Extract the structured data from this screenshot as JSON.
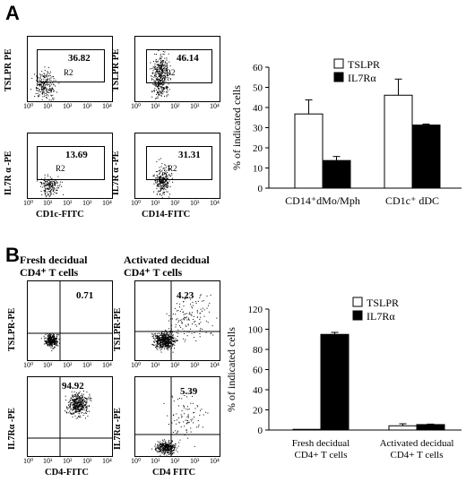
{
  "panel_a": {
    "letter": "A",
    "flow_plots": [
      {
        "ylabel": "TSLPR PE",
        "value": "36.82",
        "region": "R2",
        "xlabel": ""
      },
      {
        "ylabel": "TSLPR PE",
        "value": "46.14",
        "region": "R2",
        "xlabel": ""
      },
      {
        "ylabel": "IL7R α -PE",
        "value": "13.69",
        "region": "R2",
        "xlabel": "CD1c-FITC"
      },
      {
        "ylabel": "IL7R α -PE",
        "value": "31.31",
        "region": "R2",
        "xlabel": "CD14-FITC"
      }
    ]
  },
  "panel_b": {
    "letter": "B",
    "group_titles": [
      {
        "line1": "Fresh decidual",
        "line2": "CD4⁺ T cells"
      },
      {
        "line1": "Activated decidual",
        "line2": "CD4⁺ T cells"
      }
    ],
    "flow_plots": [
      {
        "ylabel": "TSLPR-PE",
        "value": "0.71",
        "xlabel": ""
      },
      {
        "ylabel": "TSLPR-PE",
        "value": "4.23",
        "xlabel": ""
      },
      {
        "ylabel": "IL7Rα -PE",
        "value": "94.92",
        "xlabel": "CD4-FITC"
      },
      {
        "ylabel": "IL7Rα -PE",
        "value": "5.39",
        "xlabel": "CD4 FITC"
      }
    ]
  },
  "flow_axis_ticks": [
    "10⁰",
    "10¹",
    "10²",
    "10³",
    "10⁴"
  ],
  "chart_data": [
    {
      "type": "bar",
      "categories": [
        "CD14⁺dMo/Mph",
        "CD1c⁺ dDC"
      ],
      "series": [
        {
          "name": "TSLPR",
          "values": [
            36.8,
            46.1
          ],
          "errors": [
            7,
            8
          ],
          "color": "#ffffff"
        },
        {
          "name": "IL7Rα",
          "values": [
            13.7,
            31.3
          ],
          "errors": [
            2,
            0.5
          ],
          "color": "#000000"
        }
      ],
      "ylabel": "% of indicated cells",
      "ylim": [
        0,
        60
      ],
      "yticks": [
        "0",
        "10",
        "20",
        "30",
        "40",
        "50",
        "60"
      ],
      "grid": false,
      "legend_position": "top-right"
    },
    {
      "type": "bar",
      "categories": [
        "Fresh decidual|CD4+ T cells",
        "Activated decidual|CD4+ T cells"
      ],
      "series": [
        {
          "name": "TSLPR",
          "values": [
            0.7,
            4.2
          ],
          "errors": [
            0,
            2
          ],
          "color": "#ffffff"
        },
        {
          "name": "IL7Rα",
          "values": [
            94.9,
            5.4
          ],
          "errors": [
            2,
            0.5
          ],
          "color": "#000000"
        }
      ],
      "ylabel": "% of indicated cells",
      "ylim": [
        0,
        120
      ],
      "yticks": [
        "0",
        "20",
        "40",
        "60",
        "80",
        "100",
        "120"
      ],
      "grid": false,
      "legend_position": "top-right"
    }
  ]
}
